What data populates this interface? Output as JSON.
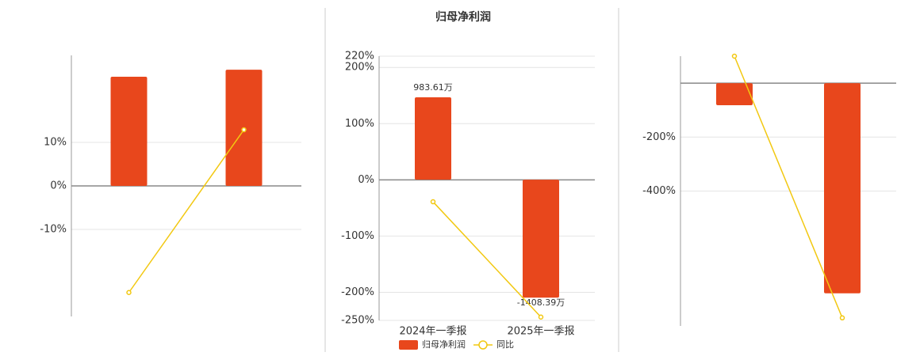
{
  "chart_data": [
    {
      "type": "bar",
      "categories": [
        null,
        null
      ],
      "series": [
        {
          "type": "bar",
          "color": "#e8471c",
          "values": [
            25.1,
            26.7
          ]
        },
        {
          "type": "line",
          "color": "#f2c811",
          "values": [
            -24.5,
            12.9
          ]
        }
      ],
      "ylim": [
        -30,
        30
      ],
      "yticks": [
        {
          "value": 10,
          "label": "10%"
        },
        {
          "value": 0,
          "label": "0%"
        },
        {
          "value": -10,
          "label": "-10%"
        }
      ],
      "grid": true
    },
    {
      "type": "bar",
      "title": "归母净利润",
      "categories": [
        "2024年一季报",
        "2025年一季报"
      ],
      "series": [
        {
          "name": "归母净利润",
          "type": "bar",
          "axis": "y2",
          "color": "#e8471c",
          "values": [
            983.61,
            -1408.39
          ],
          "value_labels": [
            "983.61万",
            "-1408.39万"
          ]
        },
        {
          "name": "同比",
          "type": "line",
          "color": "#f2c811",
          "values": [
            -39,
            -244
          ]
        }
      ],
      "ylim": [
        -250,
        220
      ],
      "yticks": [
        {
          "value": 220,
          "label": "220%"
        },
        {
          "value": 200,
          "label": "200%"
        },
        {
          "value": 100,
          "label": "100%"
        },
        {
          "value": 0,
          "label": "0%"
        },
        {
          "value": -100,
          "label": "-100%"
        },
        {
          "value": -200,
          "label": "-200%"
        },
        {
          "value": -250,
          "label": "-250%"
        }
      ],
      "y2lim": [
        -1680,
        1475
      ],
      "grid": true,
      "legend": "bottom"
    },
    {
      "type": "bar",
      "categories": [
        null,
        null
      ],
      "series": [
        {
          "type": "bar",
          "color": "#e8471c",
          "values": [
            -82,
            -779
          ]
        },
        {
          "type": "line",
          "color": "#f2c811",
          "values": [
            100,
            -870
          ]
        }
      ],
      "ylim": [
        -900,
        100
      ],
      "yticks": [
        {
          "value": -200,
          "label": "-200%"
        },
        {
          "value": -400,
          "label": "-400%"
        }
      ],
      "grid": true
    }
  ]
}
